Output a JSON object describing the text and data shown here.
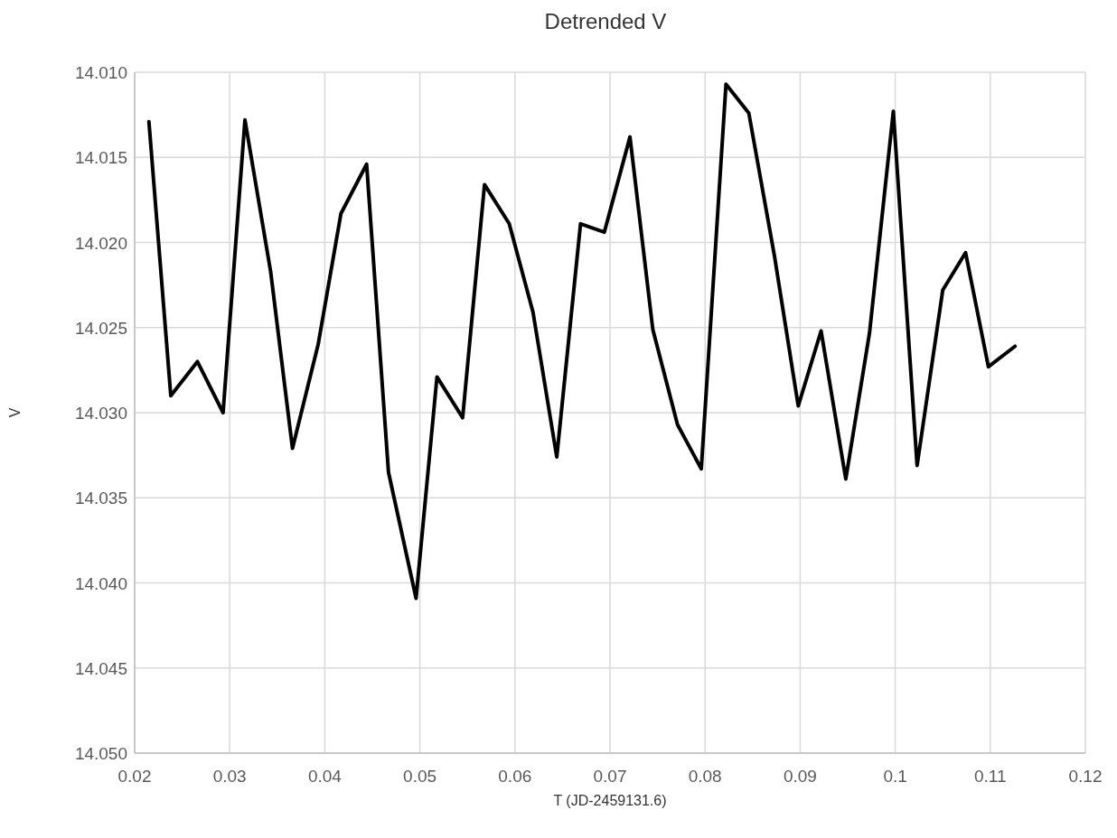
{
  "chart_data": {
    "type": "line",
    "title": "Detrended V",
    "xlabel": "T (JD-2459131.6)",
    "ylabel": "V",
    "x": [
      0.0215,
      0.0238,
      0.0266,
      0.0293,
      0.0316,
      0.0343,
      0.0366,
      0.0393,
      0.0417,
      0.0444,
      0.0467,
      0.0496,
      0.0518,
      0.0545,
      0.0568,
      0.0594,
      0.0619,
      0.0644,
      0.0669,
      0.0694,
      0.0721,
      0.0745,
      0.0771,
      0.0796,
      0.0822,
      0.0846,
      0.0873,
      0.0898,
      0.0922,
      0.0948,
      0.0973,
      0.0998,
      0.1023,
      0.105,
      0.1074,
      0.1098,
      0.1126
    ],
    "series": [
      {
        "color": "#000000",
        "values": [
          14.0129,
          14.029,
          14.027,
          14.03,
          14.0128,
          14.0217,
          14.0321,
          14.026,
          14.0183,
          14.0154,
          14.0335,
          14.0409,
          14.0279,
          14.0303,
          14.0166,
          14.0189,
          14.0241,
          14.0326,
          14.0189,
          14.0194,
          14.0138,
          14.0251,
          14.0307,
          14.0333,
          14.0107,
          14.0124,
          14.0208,
          14.0296,
          14.0252,
          14.0339,
          14.0253,
          14.0123,
          14.0331,
          14.0228,
          14.0206,
          14.0273,
          14.0261
        ]
      }
    ],
    "xlim": [
      0.02,
      0.12
    ],
    "xticks": [
      0.02,
      0.03,
      0.04,
      0.05,
      0.06,
      0.07,
      0.08,
      0.09,
      {
        "value": 0.1,
        "label": "0.1"
      },
      0.11,
      0.12
    ],
    "ylim": [
      14.05,
      14.01
    ],
    "yticks": [
      {
        "value": 14.05,
        "label": "14.050"
      },
      14.045,
      {
        "value": 14.04,
        "label": "14.040"
      },
      14.035,
      {
        "value": 14.03,
        "label": "14.030"
      },
      14.025,
      {
        "value": 14.02,
        "label": "14.020"
      },
      14.015,
      {
        "value": 14.01,
        "label": "14.010"
      }
    ],
    "grid": true,
    "marker": "none",
    "line_style": "solid"
  }
}
